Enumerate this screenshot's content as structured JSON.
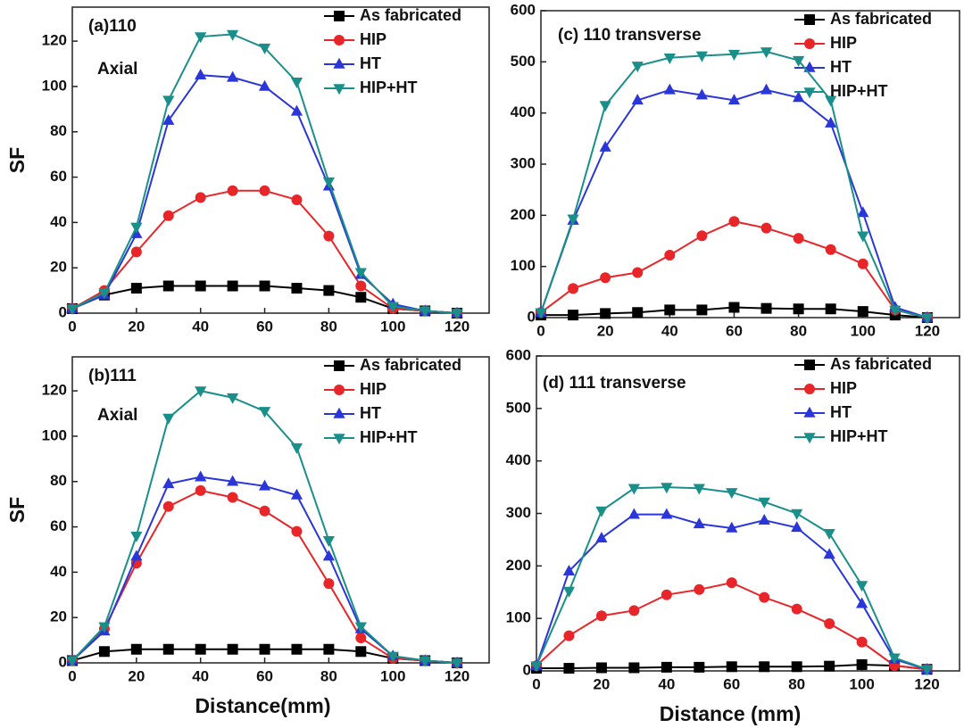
{
  "chart_data": [
    {
      "type": "line",
      "title": "(a)110",
      "annotation": "Axial",
      "ylabel": "SF",
      "x": [
        0,
        10,
        20,
        30,
        40,
        50,
        60,
        70,
        80,
        90,
        100,
        110,
        120
      ],
      "xlim": [
        0,
        130
      ],
      "xticks": [
        0,
        20,
        40,
        60,
        80,
        100,
        120
      ],
      "ylim": [
        0,
        135
      ],
      "yticks": [
        0,
        20,
        40,
        60,
        80,
        100,
        120
      ],
      "legend": "upper right",
      "series": [
        {
          "name": "As fabricated",
          "color": "#000000",
          "marker": "square",
          "values": [
            2,
            8,
            11,
            12,
            12,
            12,
            12,
            11,
            10,
            7,
            2,
            1,
            0
          ]
        },
        {
          "name": "HIP",
          "color": "#e8262a",
          "marker": "circle",
          "values": [
            2,
            10,
            27,
            43,
            51,
            54,
            54,
            50,
            34,
            12,
            2,
            1,
            0
          ]
        },
        {
          "name": "HT",
          "color": "#2a36d8",
          "marker": "triangle-up",
          "values": [
            2,
            8,
            35,
            85,
            105,
            104,
            100,
            89,
            56,
            17,
            4,
            1,
            0
          ]
        },
        {
          "name": "HIP+HT",
          "color": "#1a8f8a",
          "marker": "triangle-down",
          "values": [
            2,
            9,
            38,
            94,
            122,
            123,
            117,
            102,
            58,
            18,
            3,
            1,
            0
          ]
        }
      ]
    },
    {
      "type": "line",
      "title": "(b)111",
      "annotation": "Axial",
      "ylabel": "SF",
      "xlabel": "Distance(mm)",
      "x": [
        0,
        10,
        20,
        30,
        40,
        50,
        60,
        70,
        80,
        90,
        100,
        110,
        120
      ],
      "xlim": [
        0,
        130
      ],
      "xticks": [
        0,
        20,
        40,
        60,
        80,
        100,
        120
      ],
      "ylim": [
        0,
        135
      ],
      "yticks": [
        0,
        20,
        40,
        60,
        80,
        100,
        120
      ],
      "legend": "upper right",
      "series": [
        {
          "name": "As fabricated",
          "color": "#000000",
          "marker": "square",
          "values": [
            1,
            5,
            6,
            6,
            6,
            6,
            6,
            6,
            6,
            5,
            2,
            1,
            0
          ]
        },
        {
          "name": "HIP",
          "color": "#e8262a",
          "marker": "circle",
          "values": [
            1,
            15,
            44,
            69,
            76,
            73,
            67,
            58,
            35,
            11,
            2,
            1,
            0
          ]
        },
        {
          "name": "HT",
          "color": "#2a36d8",
          "marker": "triangle-up",
          "values": [
            1,
            14,
            47,
            79,
            82,
            80,
            78,
            74,
            47,
            15,
            3,
            1,
            0
          ]
        },
        {
          "name": "HIP+HT",
          "color": "#1a8f8a",
          "marker": "triangle-down",
          "values": [
            1,
            16,
            56,
            108,
            120,
            117,
            111,
            95,
            54,
            16,
            3,
            1,
            0
          ]
        }
      ]
    },
    {
      "type": "line",
      "title": "(c)  110 transverse",
      "x": [
        0,
        10,
        20,
        30,
        40,
        50,
        60,
        70,
        80,
        90,
        100,
        110,
        120
      ],
      "xlim": [
        0,
        130
      ],
      "xticks": [
        0,
        20,
        40,
        60,
        80,
        100,
        120
      ],
      "ylim": [
        0,
        600
      ],
      "yticks": [
        0,
        100,
        200,
        300,
        400,
        500,
        600
      ],
      "legend": "upper right",
      "series": [
        {
          "name": "As fabricated",
          "color": "#000000",
          "marker": "square",
          "values": [
            5,
            5,
            8,
            10,
            15,
            15,
            20,
            18,
            17,
            17,
            12,
            5,
            0
          ]
        },
        {
          "name": "HIP",
          "color": "#e8262a",
          "marker": "circle",
          "values": [
            10,
            57,
            78,
            88,
            122,
            160,
            188,
            175,
            155,
            133,
            105,
            15,
            0
          ]
        },
        {
          "name": "HT",
          "color": "#2a36d8",
          "marker": "triangle-up",
          "values": [
            10,
            190,
            333,
            425,
            445,
            435,
            425,
            445,
            430,
            380,
            205,
            20,
            0
          ]
        },
        {
          "name": "HIP+HT",
          "color": "#1a8f8a",
          "marker": "triangle-down",
          "values": [
            10,
            193,
            415,
            492,
            508,
            512,
            515,
            520,
            503,
            425,
            160,
            15,
            0
          ]
        }
      ]
    },
    {
      "type": "line",
      "title": "(d) 111 transverse",
      "xlabel": "Distance (mm)",
      "x": [
        0,
        10,
        20,
        30,
        40,
        50,
        60,
        70,
        80,
        90,
        100,
        110,
        120
      ],
      "xlim": [
        0,
        130
      ],
      "xticks": [
        0,
        20,
        40,
        60,
        80,
        100,
        120
      ],
      "ylim": [
        0,
        600
      ],
      "yticks": [
        0,
        100,
        200,
        300,
        400,
        500,
        600
      ],
      "legend": "upper right",
      "series": [
        {
          "name": "As fabricated",
          "color": "#000000",
          "marker": "square",
          "values": [
            5,
            5,
            6,
            6,
            7,
            7,
            8,
            8,
            8,
            9,
            12,
            10,
            3
          ]
        },
        {
          "name": "HIP",
          "color": "#e8262a",
          "marker": "circle",
          "values": [
            10,
            67,
            105,
            115,
            145,
            155,
            168,
            140,
            118,
            90,
            55,
            10,
            3
          ]
        },
        {
          "name": "HT",
          "color": "#2a36d8",
          "marker": "triangle-up",
          "values": [
            10,
            190,
            253,
            298,
            298,
            280,
            272,
            287,
            273,
            222,
            128,
            22,
            3
          ]
        },
        {
          "name": "HIP+HT",
          "color": "#1a8f8a",
          "marker": "triangle-down",
          "values": [
            10,
            152,
            305,
            348,
            350,
            348,
            340,
            322,
            300,
            262,
            163,
            25,
            3
          ]
        }
      ]
    }
  ]
}
